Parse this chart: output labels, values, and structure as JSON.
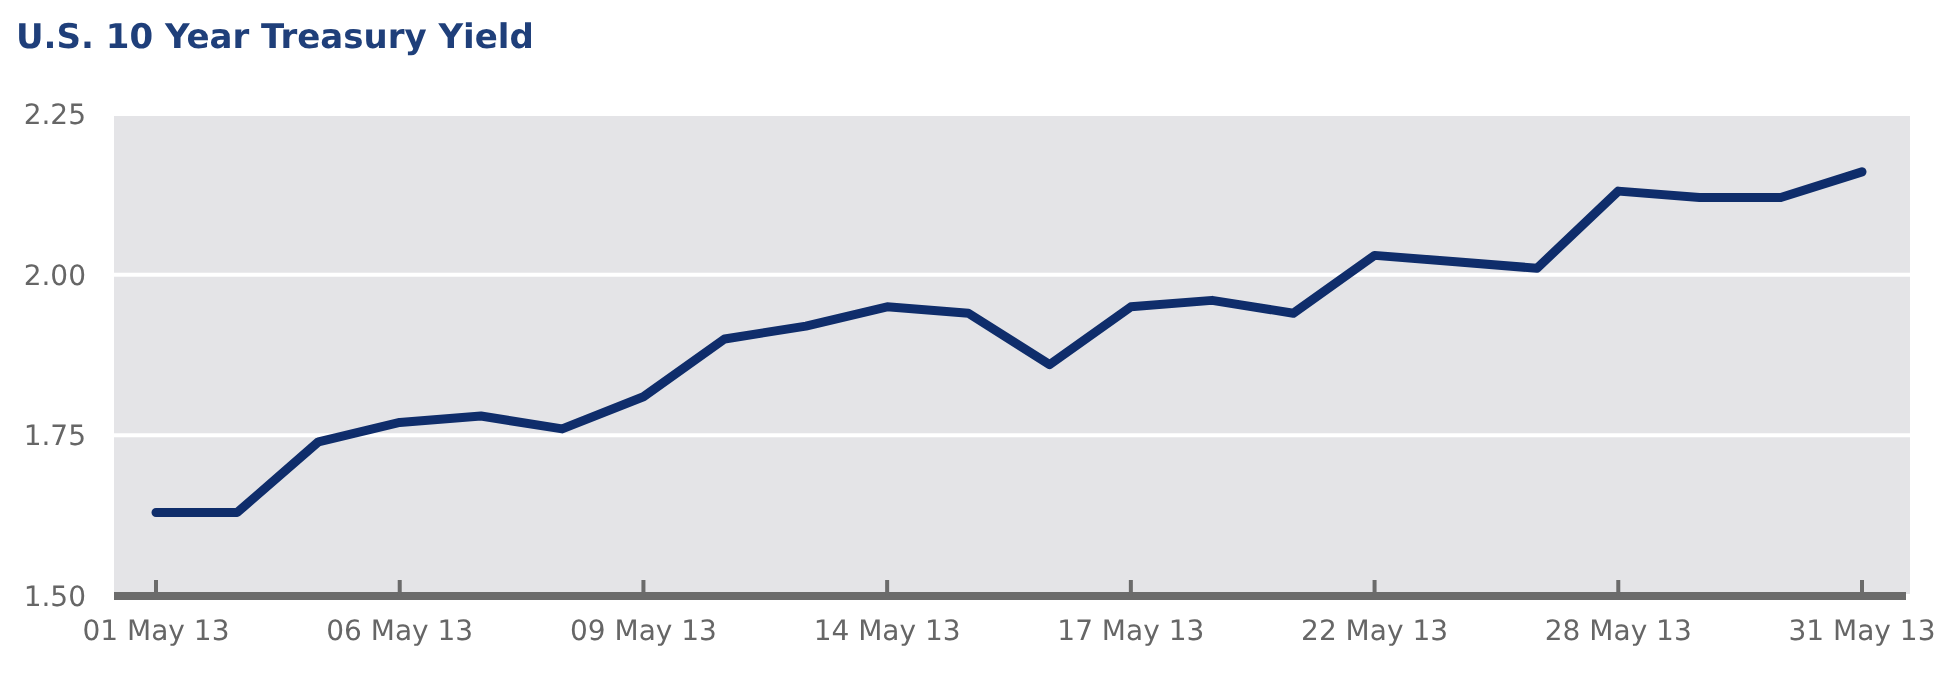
{
  "chart_data": {
    "type": "line",
    "title": "U.S. 10 Year Treasury Yield",
    "categories": [
      "01 May 13",
      null,
      null,
      "06 May 13",
      null,
      null,
      "09 May 13",
      null,
      null,
      "14 May 13",
      null,
      null,
      "17 May 13",
      null,
      null,
      "22 May 13",
      null,
      null,
      "28 May 13",
      null,
      null,
      "31 May 13"
    ],
    "series": [
      {
        "color": "#0f2d6b",
        "values": [
          1.63,
          1.63,
          1.74,
          1.77,
          1.78,
          1.76,
          1.81,
          1.9,
          1.92,
          1.95,
          1.94,
          1.86,
          1.95,
          1.96,
          1.94,
          2.03,
          2.02,
          2.01,
          2.13,
          2.12,
          2.12,
          2.16
        ]
      }
    ],
    "ylim": [
      1.5,
      2.25
    ],
    "yticks": [
      {
        "value": 1.5,
        "label": "1.50"
      },
      {
        "value": 1.75,
        "label": "1.75"
      },
      {
        "value": 2,
        "label": "2.00"
      },
      {
        "value": 2.25,
        "label": "2.25"
      }
    ],
    "grid": "y",
    "marker": "none",
    "line_style": "solid"
  }
}
